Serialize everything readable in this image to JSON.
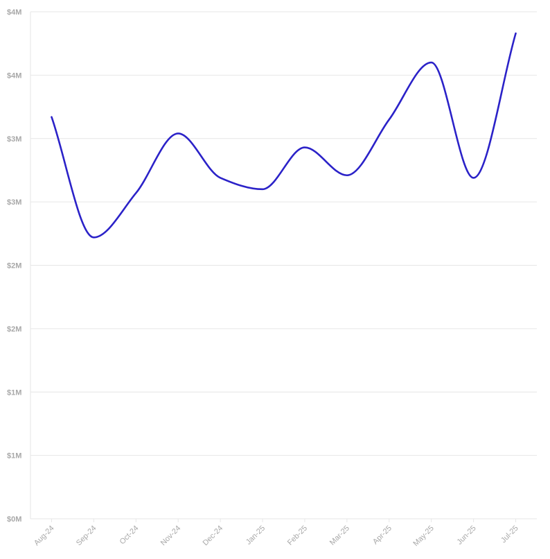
{
  "chart_data": {
    "type": "line",
    "title": "",
    "xlabel": "",
    "ylabel": "",
    "categories": [
      "Aug-24",
      "Sep-24",
      "Oct-24",
      "Nov-24",
      "Dec-24",
      "Jan-25",
      "Feb-25",
      "Mar-25",
      "Apr-25",
      "May-25",
      "Jun-25",
      "Jul-25"
    ],
    "series": [
      {
        "color": "#2b22c8",
        "values": [
          3.17,
          2.22,
          2.57,
          3.04,
          2.69,
          2.6,
          2.93,
          2.71,
          3.15,
          3.6,
          2.69,
          3.83
        ]
      }
    ],
    "ylim": [
      0,
      4
    ],
    "y_tick_values": [
      0,
      0.5,
      1,
      1.5,
      2,
      2.5,
      3,
      3.5,
      4
    ],
    "y_tick_labels": [
      "$0M",
      "$1M",
      "$1M",
      "$2M",
      "$2M",
      "$3M",
      "$3M",
      "$4M",
      "$4M"
    ],
    "grid": true,
    "smooth": true,
    "legend": "none"
  }
}
